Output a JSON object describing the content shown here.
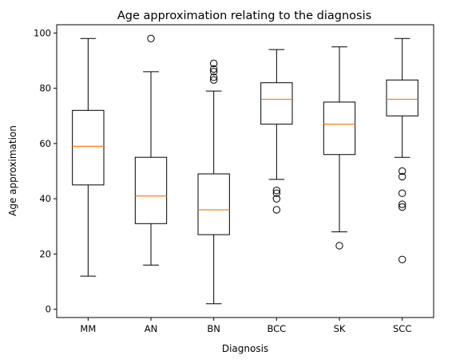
{
  "chart_data": {
    "type": "boxplot",
    "title": "Age approximation relating to the diagnosis",
    "xlabel": "Diagnosis",
    "ylabel": "Age approximation",
    "ylim": [
      -3,
      103
    ],
    "yticks": [
      0,
      20,
      40,
      60,
      80,
      100
    ],
    "grid": false,
    "median_color": "#ff7f0e",
    "categories": [
      "MM",
      "AN",
      "BN",
      "BCC",
      "SK",
      "SCC"
    ],
    "boxes": [
      {
        "category": "MM",
        "whislo": 12,
        "q1": 45,
        "med": 59,
        "q3": 72,
        "whishi": 98,
        "fliers": []
      },
      {
        "category": "AN",
        "whislo": 16,
        "q1": 31,
        "med": 41,
        "q3": 55,
        "whishi": 86,
        "fliers": [
          98
        ]
      },
      {
        "category": "BN",
        "whislo": 2,
        "q1": 27,
        "med": 36,
        "q3": 49,
        "whishi": 79,
        "fliers": [
          83,
          84,
          86,
          87,
          89
        ]
      },
      {
        "category": "BCC",
        "whislo": 47,
        "q1": 67,
        "med": 76,
        "q3": 82,
        "whishi": 94,
        "fliers": [
          36,
          40,
          42,
          43
        ]
      },
      {
        "category": "SK",
        "whislo": 28,
        "q1": 56,
        "med": 67,
        "q3": 75,
        "whishi": 95,
        "fliers": [
          23
        ]
      },
      {
        "category": "SCC",
        "whislo": 55,
        "q1": 70,
        "med": 76,
        "q3": 83,
        "whishi": 98,
        "fliers": [
          18,
          37,
          38,
          42,
          48,
          50
        ]
      }
    ]
  }
}
